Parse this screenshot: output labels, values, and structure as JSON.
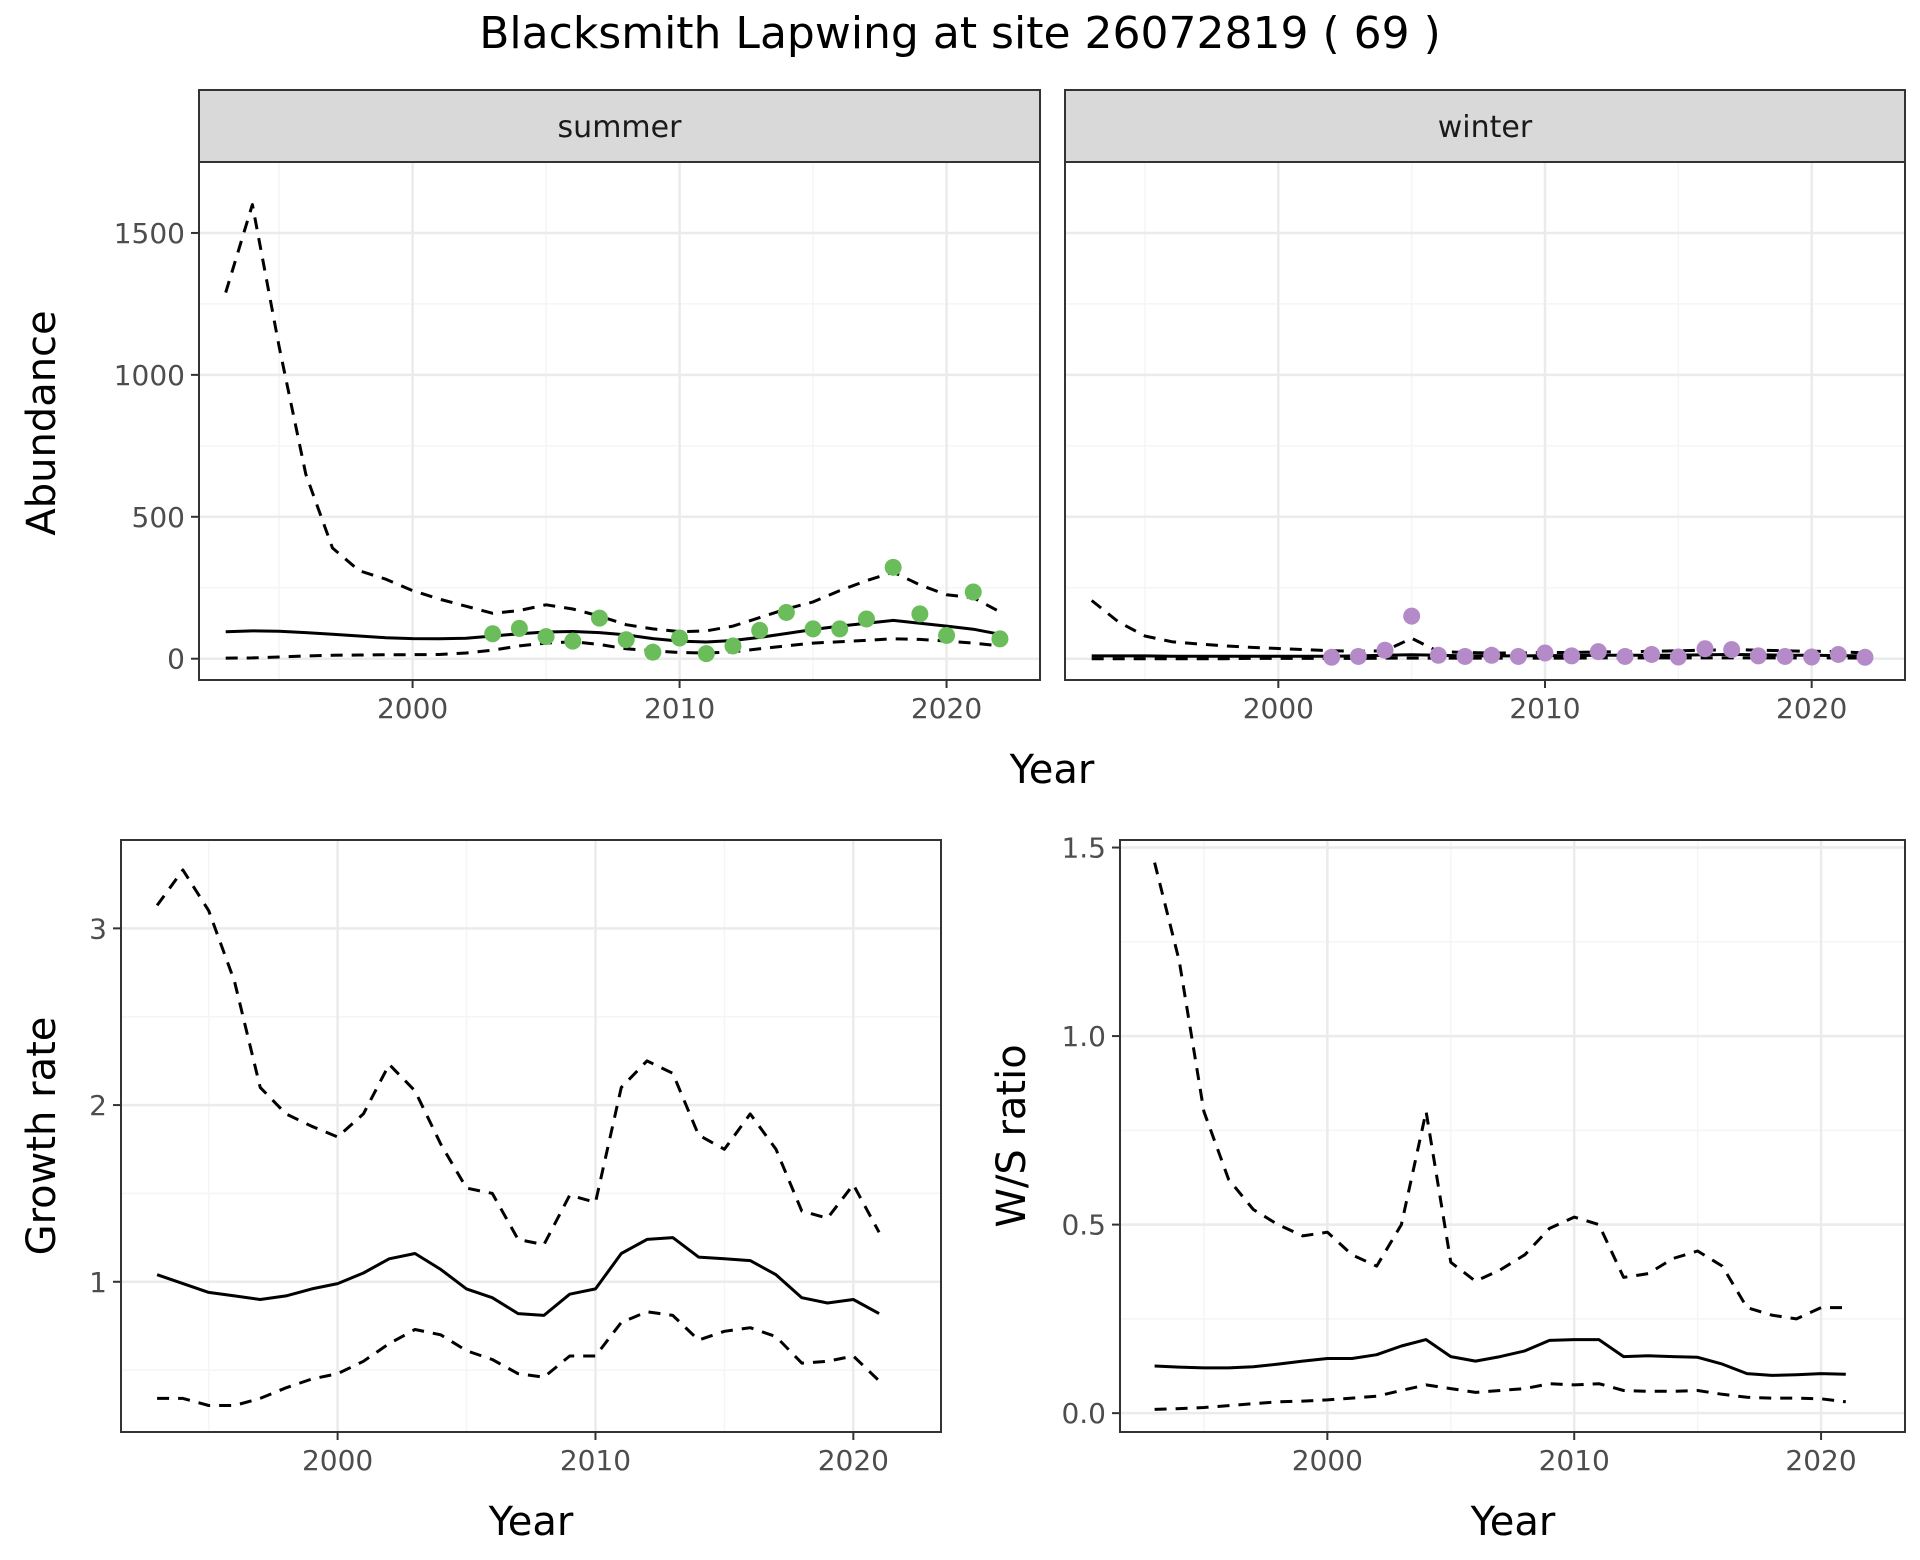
{
  "title": "Blacksmith Lapwing at site 26072819 ( 69 )",
  "colors": {
    "summer_points": "#6abd5a",
    "winter_points": "#b48bc8",
    "line": "#000000",
    "grid_major": "#ebebeb",
    "grid_minor": "#f5f5f5",
    "strip_fill": "#d9d9d9"
  },
  "chart_data": [
    {
      "id": "abundance-summer",
      "type": "line",
      "strip": "summer",
      "xlim": [
        1992,
        2023.5
      ],
      "ylim": [
        -75,
        1750
      ],
      "x_ticks": [
        2000,
        2010,
        2020
      ],
      "y_ticks": [
        0,
        500,
        1000,
        1500
      ],
      "grid": true,
      "series": [
        {
          "style": "solid",
          "x": [
            1993,
            1994,
            1995,
            1996,
            1997,
            1998,
            1999,
            2000,
            2001,
            2002,
            2003,
            2004,
            2005,
            2006,
            2007,
            2008,
            2009,
            2010,
            2011,
            2012,
            2013,
            2014,
            2015,
            2016,
            2017,
            2018,
            2019,
            2020,
            2021,
            2022
          ],
          "y": [
            95,
            98,
            97,
            92,
            86,
            80,
            74,
            71,
            70,
            72,
            80,
            88,
            94,
            96,
            92,
            84,
            71,
            62,
            59,
            64,
            75,
            89,
            103,
            115,
            125,
            135,
            125,
            115,
            104,
            86
          ]
        },
        {
          "style": "dashed",
          "x": [
            1993,
            1994,
            1995,
            1996,
            1997,
            1998,
            1999,
            2000,
            2001,
            2002,
            2003,
            2004,
            2005,
            2006,
            2007,
            2008,
            2009,
            2010,
            2011,
            2012,
            2013,
            2014,
            2015,
            2016,
            2017,
            2018,
            2019,
            2020,
            2021,
            2022
          ],
          "y": [
            1290,
            1600,
            1100,
            650,
            390,
            310,
            280,
            240,
            210,
            185,
            160,
            170,
            190,
            175,
            150,
            120,
            105,
            95,
            98,
            115,
            145,
            175,
            200,
            240,
            275,
            305,
            260,
            225,
            215,
            165
          ]
        },
        {
          "style": "dashed",
          "x": [
            1993,
            1994,
            1995,
            1996,
            1997,
            1998,
            1999,
            2000,
            2001,
            2002,
            2003,
            2004,
            2005,
            2006,
            2007,
            2008,
            2009,
            2010,
            2011,
            2012,
            2013,
            2014,
            2015,
            2016,
            2017,
            2018,
            2019,
            2020,
            2021,
            2022
          ],
          "y": [
            2,
            3,
            6,
            10,
            12,
            13,
            14,
            14,
            15,
            20,
            30,
            45,
            55,
            60,
            50,
            35,
            28,
            22,
            20,
            24,
            35,
            45,
            55,
            60,
            65,
            70,
            68,
            62,
            55,
            45
          ]
        }
      ],
      "points": {
        "x": [
          2003,
          2004,
          2005,
          2006,
          2007,
          2008,
          2009,
          2010,
          2011,
          2012,
          2013,
          2014,
          2015,
          2016,
          2017,
          2018,
          2019,
          2020,
          2021,
          2022
        ],
        "y": [
          88,
          107,
          78,
          62,
          143,
          67,
          23,
          73,
          18,
          45,
          100,
          163,
          105,
          105,
          140,
          322,
          158,
          82,
          235,
          70
        ]
      }
    },
    {
      "id": "abundance-winter",
      "type": "line",
      "strip": "winter",
      "xlim": [
        1992,
        2023.5
      ],
      "ylim": [
        -75,
        1750
      ],
      "x_ticks": [
        2000,
        2010,
        2020
      ],
      "y_ticks": [
        0,
        500,
        1000,
        1500
      ],
      "grid": true,
      "series": [
        {
          "style": "solid",
          "x": [
            1993,
            1994,
            1995,
            1996,
            1997,
            1998,
            1999,
            2000,
            2001,
            2002,
            2003,
            2004,
            2005,
            2006,
            2007,
            2008,
            2009,
            2010,
            2011,
            2012,
            2013,
            2014,
            2015,
            2016,
            2017,
            2018,
            2019,
            2020,
            2021,
            2022
          ],
          "y": [
            10,
            10,
            10,
            9,
            9,
            9,
            9,
            9,
            9,
            9,
            10,
            12,
            14,
            12,
            10,
            10,
            10,
            11,
            11,
            12,
            12,
            12,
            12,
            14,
            15,
            14,
            12,
            12,
            11,
            10
          ]
        },
        {
          "style": "dashed",
          "x": [
            1993,
            1994,
            1995,
            1996,
            1997,
            1998,
            1999,
            2000,
            2001,
            2002,
            2003,
            2004,
            2005,
            2006,
            2007,
            2008,
            2009,
            2010,
            2011,
            2012,
            2013,
            2014,
            2015,
            2016,
            2017,
            2018,
            2019,
            2020,
            2021,
            2022
          ],
          "y": [
            205,
            130,
            80,
            60,
            52,
            45,
            40,
            36,
            32,
            28,
            26,
            28,
            72,
            25,
            22,
            20,
            20,
            22,
            22,
            24,
            24,
            26,
            28,
            30,
            32,
            30,
            28,
            26,
            25,
            20
          ]
        },
        {
          "style": "dashed",
          "x": [
            1993,
            1994,
            1995,
            1996,
            1997,
            1998,
            1999,
            2000,
            2001,
            2002,
            2003,
            2004,
            2005,
            2006,
            2007,
            2008,
            2009,
            2010,
            2011,
            2012,
            2013,
            2014,
            2015,
            2016,
            2017,
            2018,
            2019,
            2020,
            2021,
            2022
          ],
          "y": [
            0,
            0,
            0,
            0,
            0,
            0,
            1,
            1,
            1,
            1,
            1,
            2,
            2,
            2,
            2,
            2,
            2,
            2,
            2,
            3,
            3,
            3,
            3,
            3,
            3,
            3,
            3,
            3,
            3,
            2
          ]
        }
      ],
      "points": {
        "x": [
          2002,
          2003,
          2004,
          2005,
          2006,
          2007,
          2008,
          2009,
          2010,
          2011,
          2012,
          2013,
          2014,
          2015,
          2016,
          2017,
          2018,
          2019,
          2020,
          2021,
          2022
        ],
        "y": [
          5,
          8,
          30,
          150,
          12,
          8,
          12,
          8,
          20,
          10,
          25,
          8,
          15,
          6,
          35,
          32,
          10,
          8,
          6,
          15,
          5
        ]
      }
    },
    {
      "id": "growth-rate",
      "type": "line",
      "xlabel": "Year",
      "ylabel": "Growth rate",
      "xlim": [
        1991.6,
        2023.4
      ],
      "ylim": [
        0.15,
        3.5
      ],
      "x_ticks": [
        2000,
        2010,
        2020
      ],
      "y_ticks": [
        1,
        2,
        3
      ],
      "grid": true,
      "series": [
        {
          "style": "solid",
          "x": [
            1993,
            1994,
            1995,
            1996,
            1997,
            1998,
            1999,
            2000,
            2001,
            2002,
            2003,
            2004,
            2005,
            2006,
            2007,
            2008,
            2009,
            2010,
            2011,
            2012,
            2013,
            2014,
            2015,
            2016,
            2017,
            2018,
            2019,
            2020,
            2021
          ],
          "y": [
            1.04,
            0.99,
            0.94,
            0.92,
            0.9,
            0.92,
            0.96,
            0.99,
            1.05,
            1.13,
            1.16,
            1.07,
            0.96,
            0.91,
            0.82,
            0.81,
            0.93,
            0.96,
            1.16,
            1.24,
            1.25,
            1.14,
            1.13,
            1.12,
            1.04,
            0.91,
            0.88,
            0.9,
            0.82
          ]
        },
        {
          "style": "dashed",
          "x": [
            1993,
            1994,
            1995,
            1996,
            1997,
            1998,
            1999,
            2000,
            2001,
            2002,
            2003,
            2004,
            2005,
            2006,
            2007,
            2008,
            2009,
            2010,
            2011,
            2012,
            2013,
            2014,
            2015,
            2016,
            2017,
            2018,
            2019,
            2020,
            2021
          ],
          "y": [
            3.13,
            3.33,
            3.1,
            2.7,
            2.1,
            1.95,
            1.88,
            1.82,
            1.95,
            2.23,
            2.08,
            1.78,
            1.53,
            1.5,
            1.24,
            1.21,
            1.49,
            1.45,
            2.1,
            2.25,
            2.18,
            1.83,
            1.75,
            1.95,
            1.75,
            1.4,
            1.36,
            1.55,
            1.28
          ]
        },
        {
          "style": "dashed",
          "x": [
            1993,
            1994,
            1995,
            1996,
            1997,
            1998,
            1999,
            2000,
            2001,
            2002,
            2003,
            2004,
            2005,
            2006,
            2007,
            2008,
            2009,
            2010,
            2011,
            2012,
            2013,
            2014,
            2015,
            2016,
            2017,
            2018,
            2019,
            2020,
            2021
          ],
          "y": [
            0.34,
            0.34,
            0.3,
            0.3,
            0.34,
            0.4,
            0.45,
            0.48,
            0.55,
            0.65,
            0.73,
            0.7,
            0.61,
            0.56,
            0.48,
            0.46,
            0.58,
            0.58,
            0.77,
            0.83,
            0.81,
            0.67,
            0.72,
            0.74,
            0.69,
            0.54,
            0.55,
            0.58,
            0.44
          ]
        }
      ]
    },
    {
      "id": "ws-ratio",
      "type": "line",
      "xlabel": "Year",
      "ylabel": "W/S ratio",
      "xlim": [
        1991.6,
        2023.4
      ],
      "ylim": [
        -0.05,
        1.52
      ],
      "x_ticks": [
        2000,
        2010,
        2020
      ],
      "y_ticks": [
        0.0,
        0.5,
        1.0,
        1.5
      ],
      "y_tick_labels": [
        "0.0",
        "0.5",
        "1.0",
        "1.5"
      ],
      "grid": true,
      "series": [
        {
          "style": "solid",
          "x": [
            1993,
            1994,
            1995,
            1996,
            1997,
            1998,
            1999,
            2000,
            2001,
            2002,
            2003,
            2004,
            2005,
            2006,
            2007,
            2008,
            2009,
            2010,
            2011,
            2012,
            2013,
            2014,
            2015,
            2016,
            2017,
            2018,
            2019,
            2020,
            2021
          ],
          "y": [
            0.125,
            0.122,
            0.12,
            0.12,
            0.123,
            0.13,
            0.138,
            0.145,
            0.145,
            0.155,
            0.178,
            0.195,
            0.15,
            0.138,
            0.15,
            0.165,
            0.193,
            0.195,
            0.195,
            0.15,
            0.152,
            0.15,
            0.148,
            0.13,
            0.105,
            0.1,
            0.102,
            0.105,
            0.103
          ]
        },
        {
          "style": "dashed",
          "x": [
            1993,
            1994,
            1995,
            1996,
            1997,
            1998,
            1999,
            2000,
            2001,
            2002,
            2003,
            2004,
            2005,
            2006,
            2007,
            2008,
            2009,
            2010,
            2011,
            2012,
            2013,
            2014,
            2015,
            2016,
            2017,
            2018,
            2019,
            2020,
            2021
          ],
          "y": [
            1.46,
            1.2,
            0.8,
            0.62,
            0.54,
            0.5,
            0.47,
            0.48,
            0.42,
            0.39,
            0.5,
            0.8,
            0.4,
            0.35,
            0.38,
            0.42,
            0.49,
            0.52,
            0.5,
            0.36,
            0.37,
            0.41,
            0.43,
            0.39,
            0.28,
            0.26,
            0.25,
            0.28,
            0.28
          ]
        },
        {
          "style": "dashed",
          "x": [
            1993,
            1994,
            1995,
            1996,
            1997,
            1998,
            1999,
            2000,
            2001,
            2002,
            2003,
            2004,
            2005,
            2006,
            2007,
            2008,
            2009,
            2010,
            2011,
            2012,
            2013,
            2014,
            2015,
            2016,
            2017,
            2018,
            2019,
            2020,
            2021
          ],
          "y": [
            0.01,
            0.012,
            0.015,
            0.02,
            0.025,
            0.03,
            0.032,
            0.035,
            0.04,
            0.045,
            0.06,
            0.075,
            0.065,
            0.055,
            0.06,
            0.065,
            0.078,
            0.075,
            0.078,
            0.06,
            0.058,
            0.058,
            0.06,
            0.05,
            0.042,
            0.04,
            0.04,
            0.038,
            0.03
          ]
        }
      ]
    }
  ],
  "shared_axes": {
    "top_xlabel": "Year",
    "top_ylabel": "Abundance"
  }
}
